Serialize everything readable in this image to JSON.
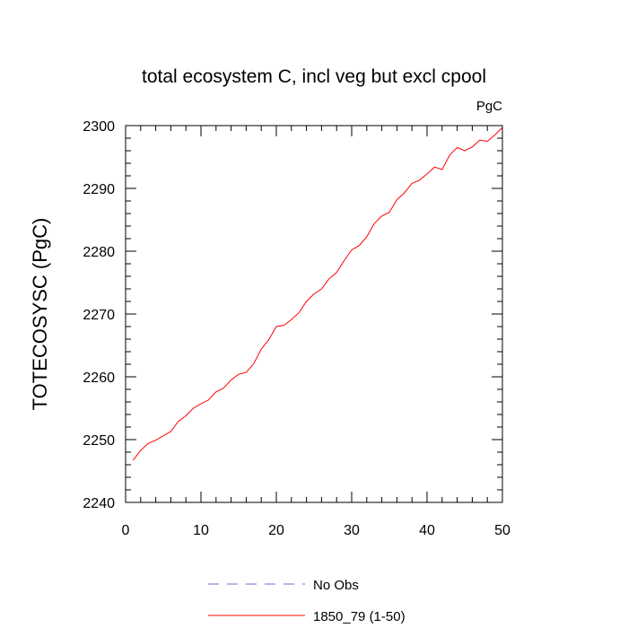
{
  "chart_data": {
    "type": "line",
    "title": "total ecosystem C, incl veg but excl cpool",
    "units": "PgC",
    "ylabel": "TOTECOSYSC  (PgC)",
    "xlabel": "",
    "xlim": [
      0,
      50
    ],
    "ylim": [
      2240,
      2300
    ],
    "x_ticks": [
      0,
      10,
      20,
      30,
      40,
      50
    ],
    "y_ticks": [
      2240,
      2250,
      2260,
      2270,
      2280,
      2290,
      2300
    ],
    "grid": false,
    "legend_position": "bottom",
    "series": [
      {
        "name": "No Obs",
        "color": "#6b6bd6",
        "style": "dashed",
        "x": [],
        "values": []
      },
      {
        "name": "1850_79 (1-50)",
        "color": "#ff0000",
        "style": "solid",
        "x": [
          1,
          2,
          3,
          4,
          5,
          6,
          7,
          8,
          9,
          10,
          11,
          12,
          13,
          14,
          15,
          16,
          17,
          18,
          19,
          20,
          21,
          22,
          23,
          24,
          25,
          26,
          27,
          28,
          29,
          30,
          31,
          32,
          33,
          34,
          35,
          36,
          37,
          38,
          39,
          40,
          41,
          42,
          43,
          44,
          45,
          46,
          47,
          48,
          49,
          50
        ],
        "values": [
          2246.7,
          2248.3,
          2249.4,
          2249.9,
          2250.6,
          2251.3,
          2252.9,
          2253.8,
          2255.0,
          2255.7,
          2256.3,
          2257.6,
          2258.2,
          2259.5,
          2260.4,
          2260.7,
          2262.1,
          2264.4,
          2265.9,
          2268.0,
          2268.2,
          2269.1,
          2270.2,
          2272.0,
          2273.2,
          2274.0,
          2275.6,
          2276.6,
          2278.5,
          2280.2,
          2280.9,
          2282.3,
          2284.4,
          2285.6,
          2286.2,
          2288.2,
          2289.3,
          2290.8,
          2291.3,
          2292.3,
          2293.4,
          2293.0,
          2295.3,
          2296.5,
          2296.0,
          2296.6,
          2297.7,
          2297.5,
          2298.5,
          2299.7
        ]
      }
    ]
  }
}
